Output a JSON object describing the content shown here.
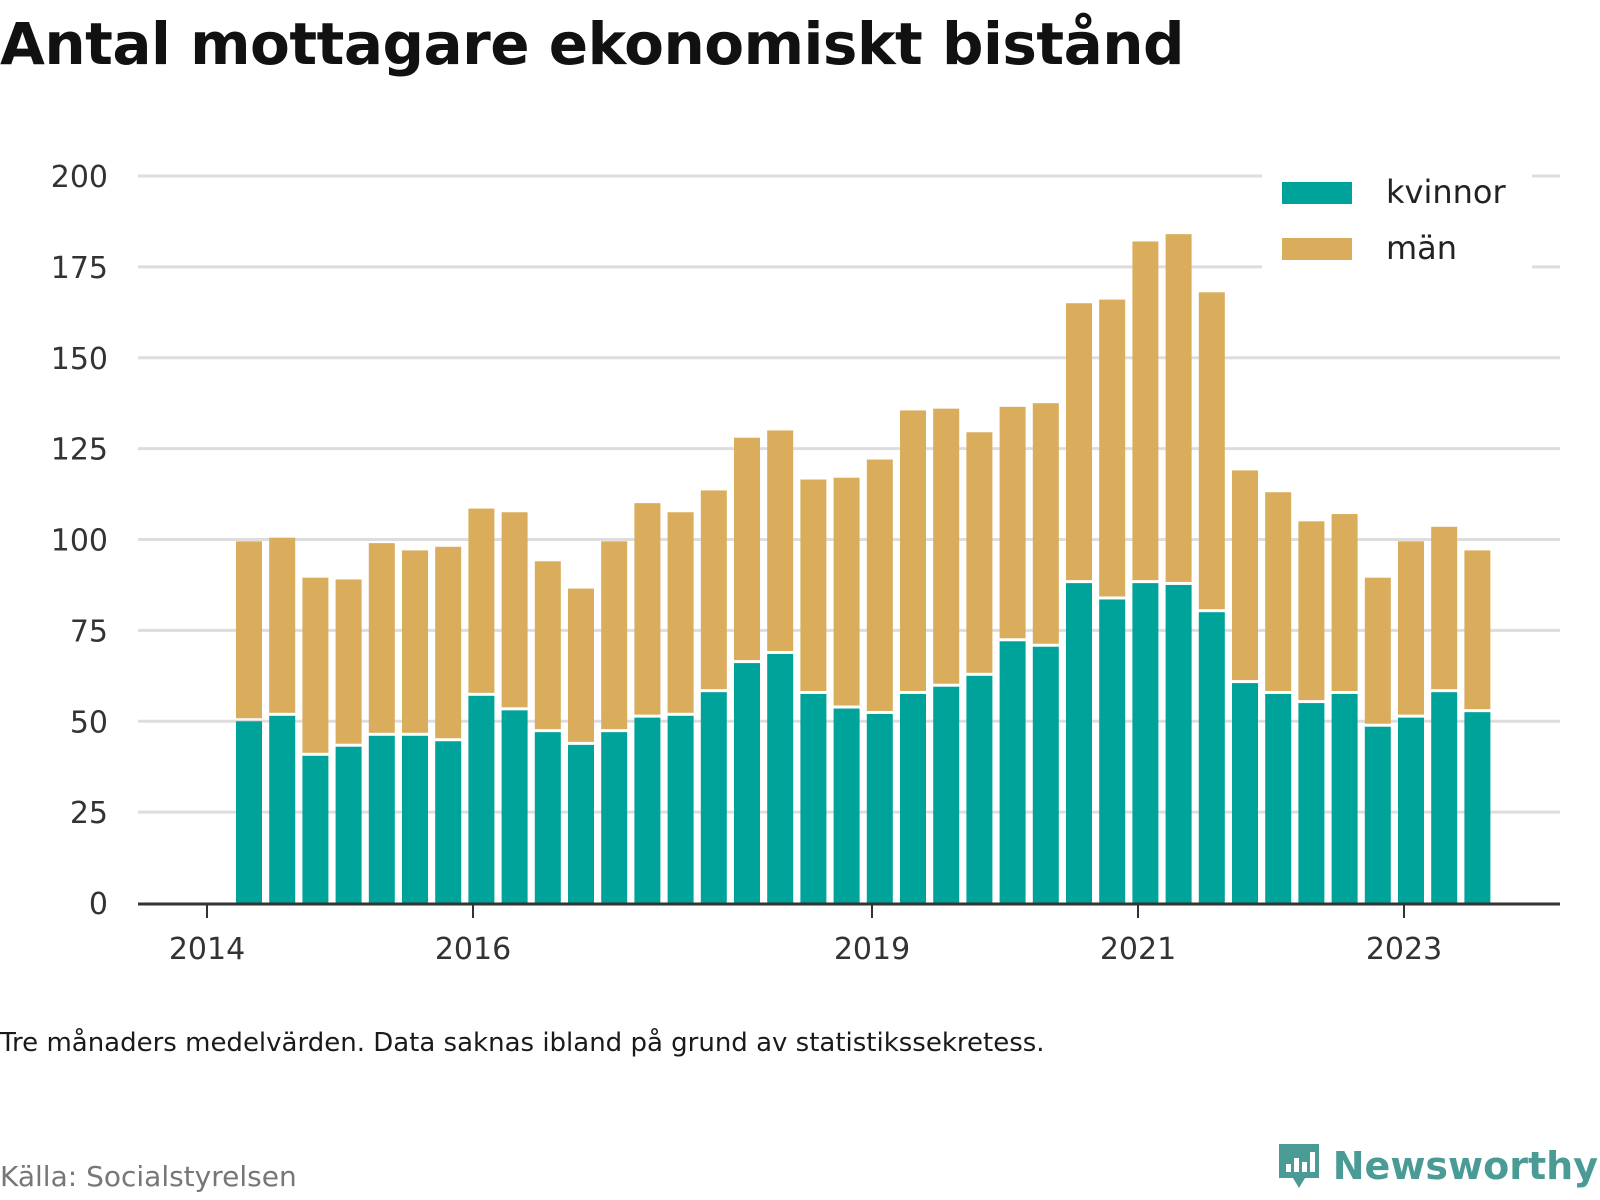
{
  "title": "Antal mottagare ekonomiskt bistånd",
  "note": "Tre månaders medelvärden. Data saknas ibland på grund av statistikssekretess.",
  "source": "Källa: Socialstyrelsen",
  "logo": {
    "text": "Newsworthy",
    "icon": "newsworthy-chart-icon"
  },
  "colors": {
    "kvinnor": "#00a39a",
    "man": "#d9ad5b",
    "grid": "#dddddd",
    "axis": "#333333"
  },
  "chart_data": {
    "type": "bar",
    "stacked": true,
    "ylim": [
      0,
      200
    ],
    "yticks": [
      0,
      25,
      50,
      75,
      100,
      125,
      150,
      175,
      200
    ],
    "xticks": [
      "2014",
      "2016",
      "2019",
      "2021",
      "2023"
    ],
    "legend": {
      "placement": "top-right",
      "entries": [
        "kvinnor",
        "män"
      ]
    },
    "grid": true,
    "series": [
      {
        "name": "kvinnor",
        "values": [
          50,
          51.5,
          40.5,
          43,
          46,
          46,
          44.5,
          57,
          53,
          47,
          43.5,
          47,
          51,
          51.5,
          58,
          66,
          68.5,
          57.5,
          53.5,
          52,
          57.5,
          59.5,
          62.5,
          72,
          70.5,
          88,
          83.5,
          88,
          87.5,
          80,
          60.5,
          57.5,
          55,
          57.5,
          48.5,
          51,
          58,
          52.5
        ]
      },
      {
        "name": "män",
        "values": [
          49.5,
          49,
          49,
          46,
          53,
          51,
          53.5,
          51.5,
          54.5,
          47,
          43,
          52.5,
          59,
          56,
          55.5,
          62,
          61.5,
          59,
          63.5,
          70,
          78,
          76.5,
          67,
          64.5,
          67,
          77,
          82.5,
          94,
          96.5,
          88,
          58.5,
          55.5,
          50,
          49.5,
          41,
          48.5,
          45.5,
          44.5
        ]
      }
    ]
  }
}
